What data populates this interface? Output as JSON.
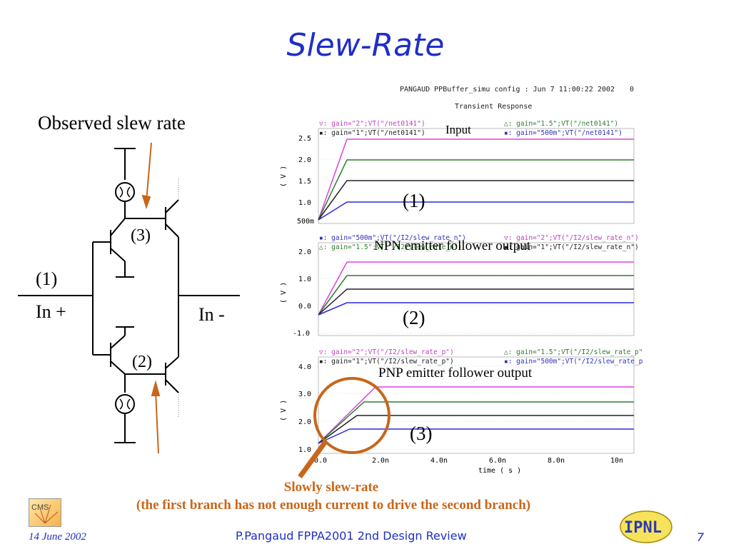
{
  "slide": {
    "title": "Slew-Rate",
    "observed_label": "Observed slew rate",
    "footer_date": "14 June 2002",
    "footer_center": "P.Pangaud FPPA2001 2nd Design Review",
    "page_number": "7",
    "slow_label": "Slowly slew-rate",
    "slow_note": "(the first branch has not enough current to drive the second branch)"
  },
  "schematic": {
    "marker1": "(1)",
    "in_plus": "In +",
    "in_minus": "In -",
    "marker2": "(2)",
    "marker3": "(3)"
  },
  "sim": {
    "header": "PANGAUD PPBuffer_simu config : Jun  7 11:00:22 2002",
    "header_right": "0",
    "subtitle": "Transient Response",
    "x_label": "time ( s )",
    "y_unit": "( V )",
    "x_ticks": [
      "0.0",
      "2.0n",
      "4.0n",
      "6.0n",
      "8.0n",
      "10n"
    ],
    "panels": [
      {
        "label": "Input",
        "marker": "(1)",
        "y_ticks": [
          "2.5",
          "2.0",
          "1.5",
          "1.0",
          "500m"
        ],
        "legend_left": [
          "▽: gain=\"2\";VT(\"/net0141\")",
          "▪: gain=\"1\";VT(\"/net0141\")"
        ],
        "legend_right": [
          "△: gain=\"1.5\";VT(\"/net0141\")",
          "▪: gain=\"500m\";VT(\"/net0141\")"
        ]
      },
      {
        "label": "NPN emitter follower output",
        "marker": "(2)",
        "y_ticks": [
          "2.0",
          "1.0",
          "0.0",
          "-1.0"
        ],
        "legend_left": [
          "▪: gain=\"500m\";VT(\"/I2/slew_rate_n\")",
          "△: gain=\"1.5\";VT(\"/I2/slew_rate_n\")"
        ],
        "legend_right": [
          "▽: gain=\"2\";VT(\"/I2/slew_rate_n\")",
          "▪: gain=\"1\";VT(\"/I2/slew_rate_n\")"
        ]
      },
      {
        "label": "PNP emitter follower output",
        "marker": "(3)",
        "y_ticks": [
          "4.0",
          "3.0",
          "2.0",
          "1.0"
        ],
        "legend_left": [
          "▽: gain=\"2\";VT(\"/I2/slew_rate_p\")",
          "▪: gain=\"1\";VT(\"/I2/slew_rate_p\")"
        ],
        "legend_right": [
          "△: gain=\"1.5\";VT(\"/I2/slew_rate_p\")",
          "▪: gain=\"500m\";VT(\"/I2/slew_rate_p\")"
        ]
      }
    ]
  },
  "logos": {
    "cms": "CMS",
    "ippl": "IPNL"
  },
  "colors": {
    "title_blue": "#1f2fc6",
    "orange": "#c8661a",
    "trace_magenta": "#e040e0",
    "trace_green": "#2e7d2e",
    "trace_black": "#222222",
    "trace_blue": "#2a2ae0",
    "legend_magenta": "#c040c0",
    "legend_blue": "#3030c0"
  }
}
